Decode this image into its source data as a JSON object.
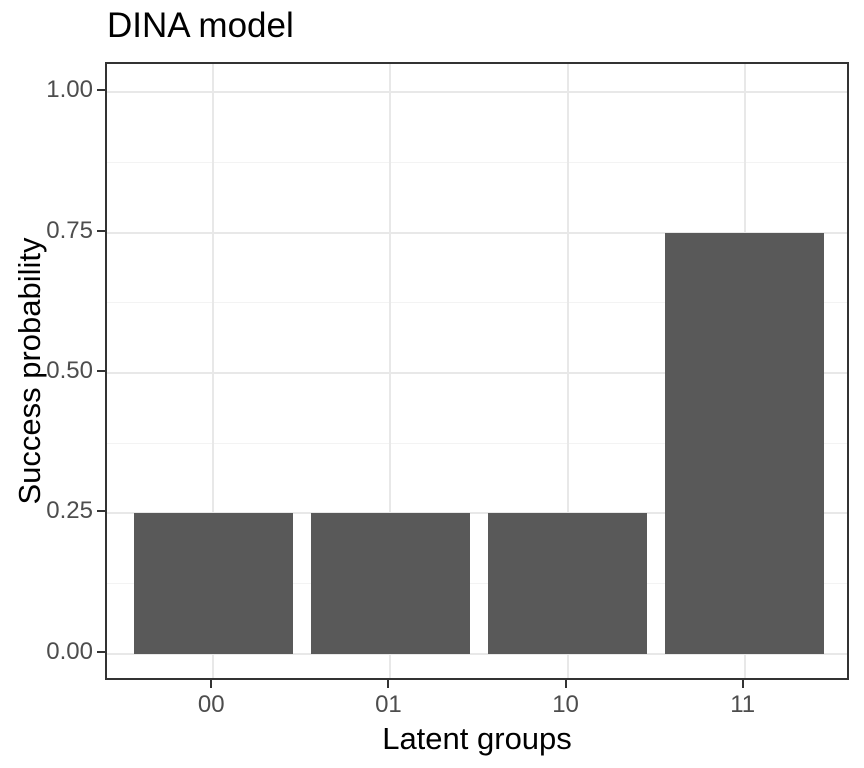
{
  "chart_data": {
    "type": "bar",
    "title": "DINA model",
    "xlabel": "Latent groups",
    "ylabel": "Success probability",
    "categories": [
      "00",
      "01",
      "10",
      "11"
    ],
    "values": [
      0.25,
      0.25,
      0.25,
      0.75
    ],
    "ylim": [
      0,
      1
    ],
    "yticks": [
      0,
      0.25,
      0.5,
      0.75,
      1
    ],
    "ytick_labels": [
      "0.00",
      "0.25",
      "0.50",
      "0.75",
      "1.00"
    ],
    "minor_yticks": [
      0.125,
      0.375,
      0.625,
      0.875
    ],
    "bar_fill": "#595959",
    "panel_border_color": "#333333",
    "grid_major_color": "#E8E8E8",
    "grid_minor_color": "#F3F3F3",
    "tick_label_color": "#4D4D4D",
    "text_color": "#000000",
    "grid": "on",
    "legend_position": "none",
    "bar_width_ratio": 0.9
  }
}
